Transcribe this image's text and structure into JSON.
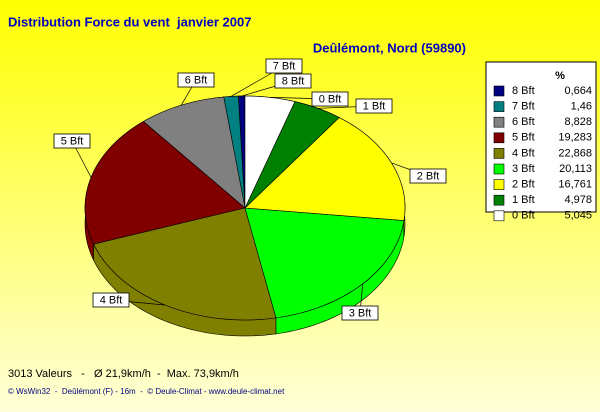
{
  "chart_data": {
    "type": "pie",
    "title": "Distribution Force du vent  janvier 2007",
    "subtitle": "Deûlémont, Nord (59890)",
    "legend_title": "%",
    "legend": "right",
    "categories": [
      "8 Bft",
      "7 Bft",
      "6 Bft",
      "5 Bft",
      "4 Bft",
      "3 Bft",
      "2 Bft",
      "1 Bft",
      "0 Bft"
    ],
    "values": [
      0.664,
      1.46,
      8.828,
      19.283,
      22.868,
      20.113,
      16.761,
      4.978,
      5.045
    ],
    "value_labels": [
      "0,664",
      "1,46",
      "8,828",
      "19,283",
      "22,868",
      "20,113",
      "16,761",
      "4,978",
      "5,045"
    ],
    "colors": [
      "#000080",
      "#008080",
      "#808080",
      "#800000",
      "#808000",
      "#00ff00",
      "#ffff00",
      "#008000",
      "#ffffff"
    ],
    "caption": "3013 Valeurs   -   Ø 21,9km/h  -  Max. 73,9km/h",
    "credits": "© WsWin32  -  Deûlémont (F) - 16m  -  © Deule-Climat - www.deule-climat.net"
  }
}
